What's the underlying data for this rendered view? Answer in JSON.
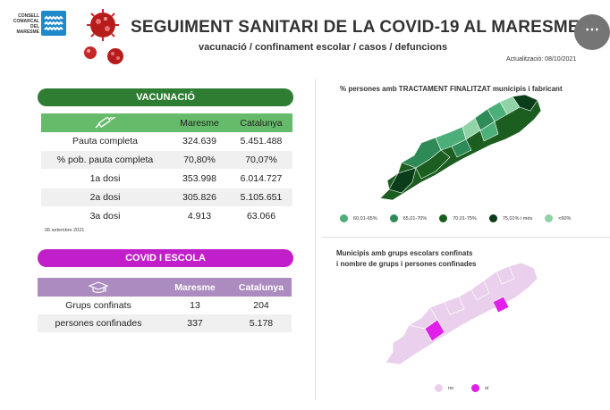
{
  "header": {
    "logo_lines": [
      "CONSELL",
      "COMARCAL",
      "DEL",
      "MARESME"
    ],
    "title": "SEGUIMENT SANITARI DE LA COVID-19 AL MARESME",
    "subtitle": "vacunació / confinament escolar / casos / defuncions",
    "updated": "Actualització: 08/10/2021",
    "menu_icon": "⋯"
  },
  "vaccination": {
    "section_label": "VACUNACIÓ",
    "columns": [
      "Maresme",
      "Catalunya"
    ],
    "rows": [
      {
        "label": "Pauta completa",
        "maresme": "324.639",
        "catalunya": "5.451.488"
      },
      {
        "label": "% pob. pauta completa",
        "maresme": "70,80%",
        "catalunya": "70,07%"
      },
      {
        "label": "1a dosi",
        "maresme": "353.998",
        "catalunya": "6.014.727"
      },
      {
        "label": "2a dosi",
        "maresme": "305.826",
        "catalunya": "5.105.651"
      },
      {
        "label": "3a dosi",
        "maresme": "4.913",
        "catalunya": "63.066"
      }
    ],
    "date_note": "06 setembre 2021"
  },
  "school": {
    "section_label": "COVID I ESCOLA",
    "columns": [
      "Maresme",
      "Catalunya"
    ],
    "rows": [
      {
        "label": "Grups confinats",
        "maresme": "13",
        "catalunya": "204"
      },
      {
        "label": "persones confinades",
        "maresme": "337",
        "catalunya": "5.178"
      }
    ]
  },
  "map_vaccination": {
    "title": "% persones amb TRACTAMENT FINALITZAT municipis i  fabricant",
    "legend": [
      {
        "label": "60,01-65%",
        "color": "#4caf7a"
      },
      {
        "label": "65,01-70%",
        "color": "#2e8b57"
      },
      {
        "label": "70,01-75%",
        "color": "#1b5e20"
      },
      {
        "label": "75,01% i més",
        "color": "#0b3d1a"
      },
      {
        "label": "<60%",
        "color": "#8fd3a6"
      }
    ]
  },
  "map_school": {
    "title_line1": "Municipis amb grups escolars confinats",
    "title_line2": "i nombre de grups i persones confinades",
    "legend": [
      {
        "label": "no",
        "color": "#ead0ec"
      },
      {
        "label": "sí",
        "color": "#e020e8"
      }
    ]
  }
}
